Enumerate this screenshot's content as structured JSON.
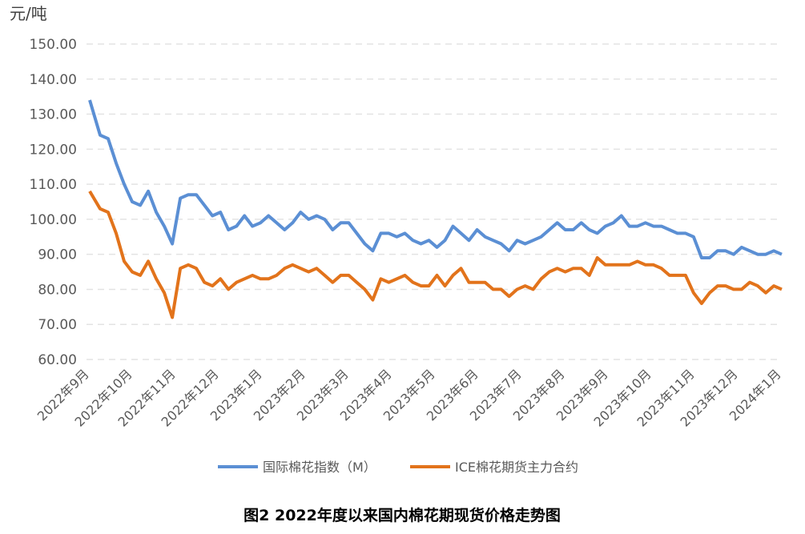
{
  "chart_data": {
    "type": "line",
    "title": "图2  2022年度以来国内棉花期现货价格走势图",
    "ylabel": "元/吨",
    "xlabel": "",
    "ylim": [
      60,
      150
    ],
    "yticks": [
      "60.00",
      "70.00",
      "80.00",
      "90.00",
      "100.00",
      "110.00",
      "120.00",
      "130.00",
      "140.00",
      "150.00"
    ],
    "xticks": [
      "2022年9月",
      "2022年10月",
      "2022年11月",
      "2022年12月",
      "2023年1月",
      "2023年2月",
      "2023年3月",
      "2023年4月",
      "2023年5月",
      "2023年6月",
      "2023年7月",
      "2023年8月",
      "2023年9月",
      "2023年10月",
      "2023年11月",
      "2023年12月",
      "2024年1月"
    ],
    "grid": true,
    "legend_position": "bottom",
    "series": [
      {
        "name": "国际棉花指数（M）",
        "color": "#5b8fd4",
        "values": [
          134,
          124,
          123,
          116,
          110,
          105,
          104,
          108,
          102,
          98,
          93,
          106,
          107,
          107,
          104,
          101,
          102,
          97,
          98,
          101,
          98,
          99,
          101,
          99,
          97,
          99,
          102,
          100,
          101,
          100,
          97,
          99,
          99,
          96,
          93,
          91,
          96,
          96,
          95,
          96,
          94,
          93,
          94,
          92,
          94,
          98,
          96,
          94,
          97,
          95,
          94,
          93,
          91,
          94,
          93,
          94,
          95,
          97,
          99,
          97,
          97,
          99,
          97,
          96,
          98,
          99,
          101,
          98,
          98,
          99,
          98,
          98,
          97,
          96,
          96,
          95,
          89,
          89,
          91,
          91,
          90,
          92,
          91,
          90,
          90,
          91,
          90
        ]
      },
      {
        "name": "ICE棉花期货主力合约",
        "color": "#e2731b",
        "values": [
          108,
          103,
          102,
          96,
          88,
          85,
          84,
          88,
          83,
          79,
          72,
          86,
          87,
          86,
          82,
          81,
          83,
          80,
          82,
          83,
          84,
          83,
          83,
          84,
          86,
          87,
          86,
          85,
          86,
          84,
          82,
          84,
          84,
          82,
          80,
          77,
          83,
          82,
          83,
          84,
          82,
          81,
          81,
          84,
          81,
          84,
          86,
          82,
          82,
          82,
          80,
          80,
          78,
          80,
          81,
          80,
          83,
          85,
          86,
          85,
          86,
          86,
          84,
          89,
          87,
          87,
          87,
          87,
          88,
          87,
          87,
          86,
          84,
          84,
          84,
          79,
          76,
          79,
          81,
          81,
          80,
          80,
          82,
          81,
          79,
          81,
          80
        ]
      }
    ]
  }
}
